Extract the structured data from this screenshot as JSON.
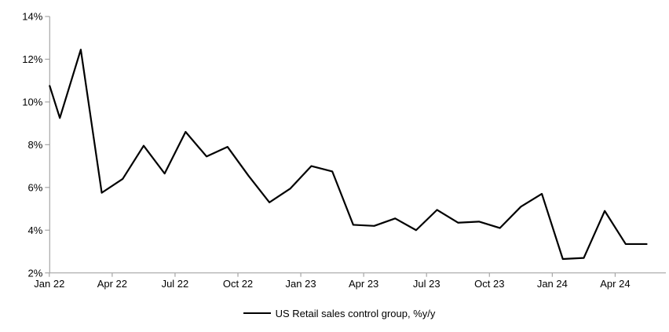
{
  "chart_data": {
    "type": "line",
    "title": "",
    "xlabel": "",
    "ylabel": "",
    "ylim": [
      2,
      14
    ],
    "grid": false,
    "legend_position": "bottom-center",
    "y_tick_labels": [
      "14%",
      "12%",
      "10%",
      "8%",
      "6%",
      "4%",
      "2%"
    ],
    "y_tick_values": [
      14,
      12,
      10,
      8,
      6,
      4,
      2
    ],
    "x_tick_labels": [
      "Jan 22",
      "Apr 22",
      "Jul 22",
      "Oct 22",
      "Jan 23",
      "Apr 23",
      "Jul 23",
      "Oct 23",
      "Jan 24",
      "Apr 24"
    ],
    "series": [
      {
        "name": "US Retail sales control group, %y/y",
        "x": [
          "Jan 22",
          "Feb 22",
          "Mar 22",
          "Apr 22",
          "May 22",
          "Jun 22",
          "Jul 22",
          "Aug 22",
          "Sep 22",
          "Oct 22",
          "Nov 22",
          "Dec 22",
          "Jan 23",
          "Feb 23",
          "Mar 23",
          "Apr 23",
          "May 23",
          "Jun 23",
          "Jul 23",
          "Aug 23",
          "Sep 23",
          "Oct 23",
          "Nov 23",
          "Dec 23",
          "Jan 24",
          "Feb 24",
          "Mar 24",
          "Apr 24",
          "May 24"
        ],
        "values": [
          9.25,
          12.45,
          5.75,
          6.4,
          7.95,
          6.65,
          8.6,
          7.45,
          7.9,
          6.55,
          5.3,
          5.95,
          7.0,
          6.75,
          4.25,
          4.2,
          4.55,
          4.0,
          4.95,
          4.35,
          4.4,
          4.1,
          5.1,
          5.7,
          2.65,
          2.7,
          4.9,
          3.35,
          3.35
        ],
        "axis_entry_value": 10.75
      }
    ],
    "colors": {
      "line": "#000000",
      "axis": "#a6a6a6",
      "text": "#000000",
      "background": "#ffffff"
    }
  },
  "legend": {
    "label": "US Retail sales control group, %y/y"
  }
}
